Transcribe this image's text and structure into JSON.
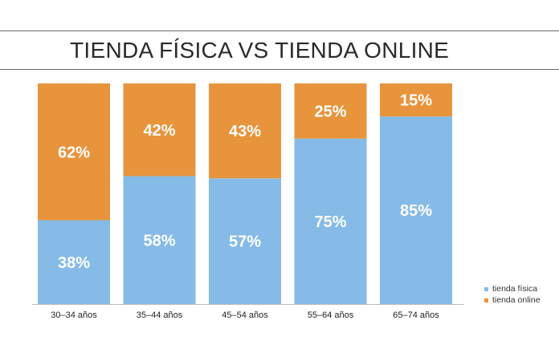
{
  "chart_data": {
    "type": "bar",
    "stacked": true,
    "title": "TIENDA FÍSICA VS TIENDA ONLINE",
    "categories": [
      "30–34 años",
      "35–44 años",
      "45–54 años",
      "55–64 años",
      "65–74 años"
    ],
    "series": [
      {
        "name": "tienda física",
        "color": "#85bbe6",
        "values": [
          38,
          58,
          57,
          75,
          85
        ]
      },
      {
        "name": "tienda online",
        "color": "#e8943c",
        "values": [
          62,
          42,
          43,
          25,
          15
        ]
      }
    ],
    "value_labels": {
      "tienda física": [
        "38%",
        "58%",
        "57%",
        "75%",
        "85%"
      ],
      "tienda online": [
        "62%",
        "42%",
        "43%",
        "25%",
        "15%"
      ]
    },
    "ylim": [
      0,
      100
    ],
    "grid": false,
    "legend_position": "bottom-right"
  }
}
